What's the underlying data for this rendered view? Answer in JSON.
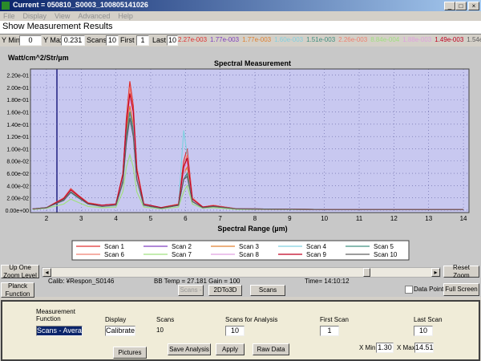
{
  "window": {
    "title": "Current = 050810_S0003_100805141026",
    "menu": [
      "File",
      "Display",
      "View",
      "Advanced",
      "Help"
    ],
    "header": "Show Measurement Results"
  },
  "toolbar": {
    "ymin_label": "Y Min",
    "ymin": "0",
    "ymax_label": "Y Max",
    "ymax": "0.231",
    "scans_label": "Scans",
    "scans": "10",
    "first_label": "First",
    "first": "1",
    "last_label": "Last",
    "last": "10",
    "scan_values": [
      "2.27e-003",
      "1.77e-003",
      "1.77e-003",
      "1.60e-003",
      "1.51e-003",
      "2.26e-003",
      "8.84e-004",
      "1.88e-003",
      "1.49e-003",
      "1.54e-003"
    ]
  },
  "chart_data": {
    "type": "line",
    "title": "Spectral Measurement",
    "y_label": "Watt/cm^2/Str/µm",
    "x_label": "Spectral Range (µm)",
    "x": [
      1.6,
      2.0,
      2.5,
      2.7,
      2.9,
      3.2,
      3.6,
      4.0,
      4.2,
      4.3,
      4.4,
      4.5,
      4.6,
      4.8,
      5.3,
      5.8,
      5.95,
      6.05,
      6.2,
      6.5,
      6.8,
      7.5,
      10,
      14
    ],
    "series": [
      {
        "name": "Scan 1",
        "color": "#e03030",
        "values": [
          0.002,
          0.004,
          0.02,
          0.035,
          0.025,
          0.012,
          0.008,
          0.01,
          0.06,
          0.15,
          0.21,
          0.17,
          0.07,
          0.01,
          0.004,
          0.01,
          0.08,
          0.1,
          0.02,
          0.005,
          0.008,
          0.002,
          0.001,
          0.001
        ]
      },
      {
        "name": "Scan 2",
        "color": "#8040c0",
        "values": [
          0.002,
          0.004,
          0.017,
          0.03,
          0.022,
          0.01,
          0.007,
          0.009,
          0.05,
          0.12,
          0.16,
          0.13,
          0.05,
          0.008,
          0.003,
          0.008,
          0.05,
          0.06,
          0.015,
          0.004,
          0.006,
          0.002,
          0.001,
          0.001
        ]
      },
      {
        "name": "Scan 3",
        "color": "#e08030",
        "values": [
          0.002,
          0.004,
          0.018,
          0.031,
          0.023,
          0.011,
          0.007,
          0.009,
          0.05,
          0.13,
          0.17,
          0.14,
          0.06,
          0.009,
          0.003,
          0.008,
          0.06,
          0.07,
          0.016,
          0.004,
          0.006,
          0.002,
          0.001,
          0.001
        ]
      },
      {
        "name": "Scan 4",
        "color": "#80d0e0",
        "values": [
          0.002,
          0.004,
          0.016,
          0.028,
          0.02,
          0.01,
          0.006,
          0.008,
          0.045,
          0.11,
          0.15,
          0.12,
          0.05,
          0.008,
          0.003,
          0.009,
          0.13,
          0.09,
          0.015,
          0.004,
          0.006,
          0.002,
          0.001,
          0.001
        ]
      },
      {
        "name": "Scan 5",
        "color": "#409080",
        "values": [
          0.002,
          0.004,
          0.017,
          0.03,
          0.021,
          0.01,
          0.007,
          0.009,
          0.05,
          0.12,
          0.16,
          0.13,
          0.05,
          0.008,
          0.003,
          0.008,
          0.05,
          0.06,
          0.014,
          0.004,
          0.006,
          0.002,
          0.001,
          0.001
        ]
      },
      {
        "name": "Scan 6",
        "color": "#f08070",
        "values": [
          0.002,
          0.004,
          0.02,
          0.034,
          0.024,
          0.012,
          0.008,
          0.01,
          0.06,
          0.14,
          0.2,
          0.16,
          0.07,
          0.01,
          0.004,
          0.01,
          0.07,
          0.09,
          0.02,
          0.005,
          0.008,
          0.002,
          0.001,
          0.001
        ]
      },
      {
        "name": "Scan 7",
        "color": "#a0e080",
        "values": [
          0.001,
          0.003,
          0.01,
          0.018,
          0.013,
          0.006,
          0.004,
          0.005,
          0.03,
          0.07,
          0.09,
          0.07,
          0.03,
          0.005,
          0.002,
          0.005,
          0.03,
          0.04,
          0.01,
          0.003,
          0.004,
          0.001,
          0.001,
          0.001
        ]
      },
      {
        "name": "Scan 8",
        "color": "#e0a0e0",
        "values": [
          0.002,
          0.004,
          0.019,
          0.032,
          0.024,
          0.011,
          0.007,
          0.009,
          0.055,
          0.14,
          0.18,
          0.15,
          0.06,
          0.009,
          0.003,
          0.009,
          0.06,
          0.08,
          0.017,
          0.004,
          0.007,
          0.002,
          0.001,
          0.001
        ]
      },
      {
        "name": "Scan 9",
        "color": "#c00020",
        "values": [
          0.002,
          0.004,
          0.019,
          0.033,
          0.024,
          0.011,
          0.008,
          0.01,
          0.058,
          0.14,
          0.19,
          0.16,
          0.065,
          0.01,
          0.004,
          0.009,
          0.07,
          0.085,
          0.018,
          0.005,
          0.007,
          0.002,
          0.001,
          0.001
        ]
      },
      {
        "name": "Scan 10",
        "color": "#606060",
        "values": [
          0.002,
          0.004,
          0.016,
          0.029,
          0.021,
          0.01,
          0.006,
          0.008,
          0.045,
          0.11,
          0.15,
          0.12,
          0.05,
          0.008,
          0.003,
          0.008,
          0.05,
          0.055,
          0.014,
          0.004,
          0.006,
          0.002,
          0.001,
          0.001
        ]
      }
    ],
    "xlim": [
      1.54,
      14.16
    ],
    "xticks": [
      2,
      3,
      4,
      5,
      6,
      7,
      8,
      9,
      10,
      11,
      12,
      13,
      14
    ],
    "ylim": [
      -0.004,
      0.23
    ],
    "yticks": [
      {
        "value": 0,
        "label": "0.00e+00"
      },
      {
        "value": 0.02,
        "label": "2.00e-02"
      },
      {
        "value": 0.04,
        "label": "4.00e-02"
      },
      {
        "value": 0.06,
        "label": "6.00e-02"
      },
      {
        "value": 0.08,
        "label": "8.00e-02"
      },
      {
        "value": 0.1,
        "label": "1.00e-01"
      },
      {
        "value": 0.12,
        "label": "1.20e-01"
      },
      {
        "value": 0.14,
        "label": "1.40e-01"
      },
      {
        "value": 0.16,
        "label": "1.60e-01"
      },
      {
        "value": 0.18,
        "label": "1.80e-01"
      },
      {
        "value": 0.2,
        "label": "2.00e-01"
      },
      {
        "value": 0.22,
        "label": "2.20e-01"
      }
    ],
    "grid": true
  },
  "controls": {
    "up_zoom": "Up One Zoom Level",
    "reset_zoom": "Reset Zoom",
    "calib": "Calib: ¥Respon_S0146",
    "bb_temp": "BB Temp = 27.181 Gain = 100",
    "time": "Time= 14:10:12",
    "planck": "Planck Function",
    "scans_minus": "Scans -",
    "to3d": "2DTo3D",
    "scans_plus": "Scans",
    "data_points": "Data Points",
    "full_screen": "Full Screen"
  },
  "analysis": {
    "measurement_function_label": "Measurement Function",
    "measurement_function": "Scans - Avera",
    "display_label": "Display",
    "display": "Calibrate",
    "scans_label": "Scans",
    "scans": "10",
    "scans_for_analysis_label": "Scans for Analysis",
    "scans_for_analysis": "10",
    "first_scan_label": "First Scan",
    "first_scan": "1",
    "last_scan_label": "Last Scan",
    "last_scan": "10",
    "xmin_label": "X Min",
    "xmin": "1.30",
    "xmax_label": "X Max",
    "xmax": "14.51",
    "pictures": "Pictures",
    "save_analysis": "Save Analysis",
    "apply": "Apply",
    "raw_data": "Raw Data"
  }
}
